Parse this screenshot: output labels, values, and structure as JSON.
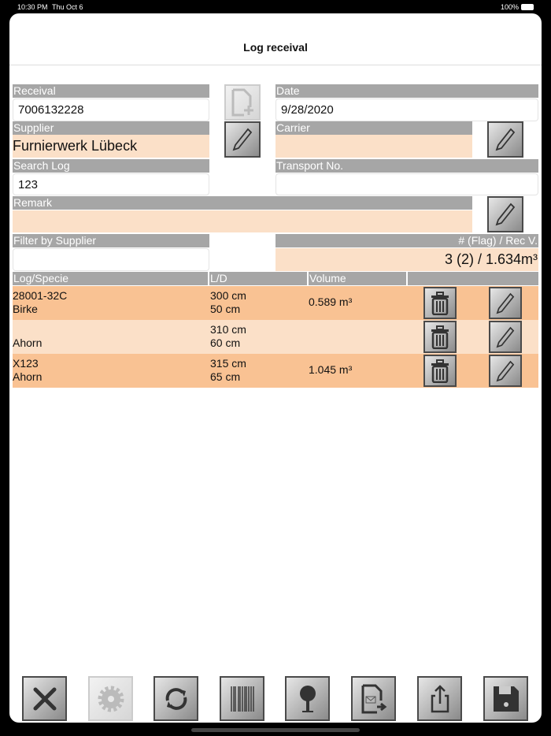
{
  "status_bar": {
    "time": "10:30 PM",
    "date": "Thu Oct 6",
    "battery": "100%"
  },
  "title": "Log receival",
  "form": {
    "receival_label": "Receival",
    "receival_value": "7006132228",
    "date_label": "Date",
    "date_value": "9/28/2020",
    "supplier_label": "Supplier",
    "supplier_value": "Furnierwerk Lübeck",
    "carrier_label": "Carrier",
    "carrier_value": "",
    "search_log_label": "Search Log",
    "search_log_value": "123",
    "transport_label": "Transport No.",
    "transport_value": "",
    "remark_label": "Remark",
    "remark_value": "",
    "filter_label": "Filter by Supplier",
    "filter_value": "",
    "summary_label": "# (Flag) / Rec V.",
    "summary_value": "3 (2) / 1.634m³"
  },
  "table": {
    "headers": [
      "Log/Specie",
      "L/D",
      "Volume",
      ""
    ],
    "rows": [
      {
        "log": "28001-32C",
        "specie": "Birke",
        "length": "300 cm",
        "diameter": "50 cm",
        "volume": "0.589 m³"
      },
      {
        "log": "",
        "specie": "Ahorn",
        "length": "310 cm",
        "diameter": "60 cm",
        "volume": ""
      },
      {
        "log": "X123",
        "specie": "Ahorn",
        "length": "315 cm",
        "diameter": "65 cm",
        "volume": "1.045 m³"
      }
    ]
  },
  "colors": {
    "row_dark": "#f9c293",
    "row_light": "#fbe0c8",
    "label_bg": "#a6a6a6"
  },
  "toolbar": [
    "close-icon",
    "settings-icon",
    "sync-icon",
    "barcode-icon",
    "tree-icon",
    "mail-export-icon",
    "share-icon",
    "save-icon"
  ]
}
